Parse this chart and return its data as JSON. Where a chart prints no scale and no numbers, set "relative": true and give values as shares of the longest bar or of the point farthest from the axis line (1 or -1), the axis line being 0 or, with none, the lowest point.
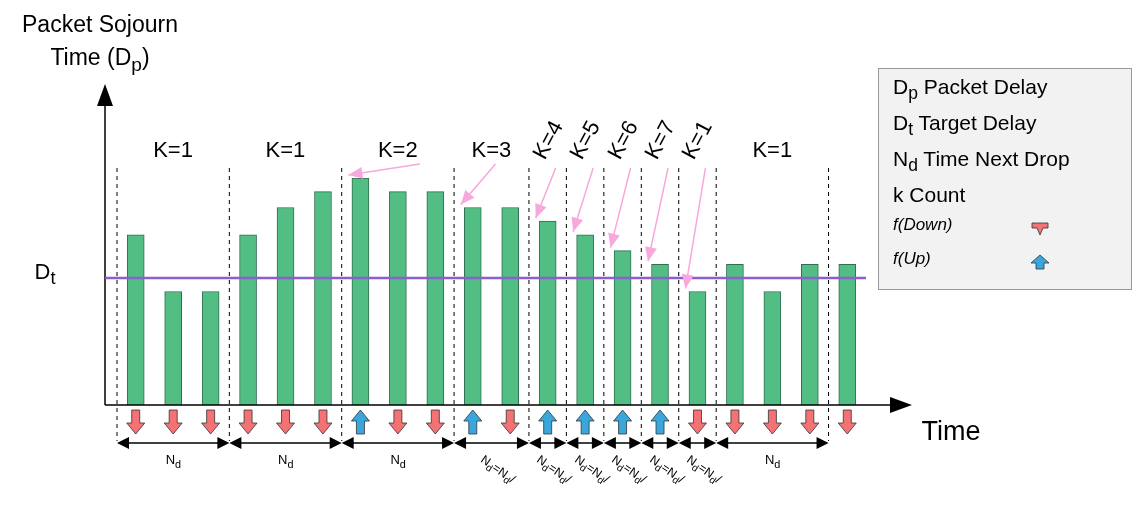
{
  "chart_data": {
    "type": "bar",
    "relative": true,
    "ylabel": "Packet Sojourn Time (D$_{p}$)",
    "xlabel": "Time",
    "categories": [
      null,
      null,
      null,
      null,
      null,
      null,
      null,
      null,
      null,
      null,
      null,
      null,
      null,
      null,
      null,
      null,
      null,
      null,
      null,
      null
    ],
    "values": [
      0.75,
      0.5,
      0.5,
      0.75,
      0.87,
      0.94,
      1,
      0.94,
      0.94,
      0.87,
      0.87,
      0.81,
      0.75,
      0.68,
      0.62,
      0.5,
      0.62,
      0.5,
      0.62,
      0.62
    ],
    "color": "#52be83",
    "ref_lines": [
      {
        "axis": "y",
        "value": 0.56,
        "label": "D$_{t}$",
        "color": "#8b5fd0"
      }
    ],
    "annotations": [
      "K=1",
      "K=1",
      "K=2",
      "K=3",
      "K=4",
      "K=5",
      "K=6",
      "K=7",
      "K=1",
      "K=1",
      "N$_{d}$",
      "N$_{d}$",
      "N$_{d}$",
      "N$_{d}$=N$_{d}$/",
      "N$_{d}$=N$_{d}$/",
      "N$_{d}$=N$_{d}$/",
      "N$_{d}$=N$_{d}$/",
      "N$_{d}$=N$_{d}$/",
      "N$_{d}$=N$_{d}$/",
      "N$_{d}$",
      "D$_{p}$ Packet Delay",
      "D$_{t}$ Target Delay",
      "N$_{d}$ Time Next Drop",
      "k Count",
      "f(Down)",
      "f(Up)"
    ]
  }
}
